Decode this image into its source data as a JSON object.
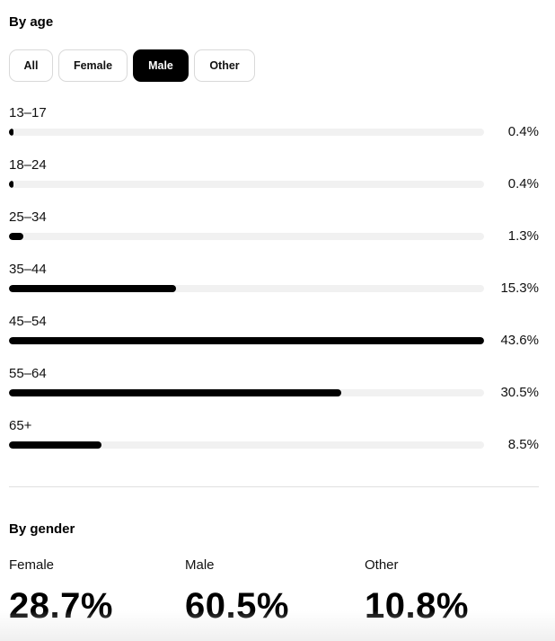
{
  "by_age": {
    "title": "By age",
    "filters": [
      {
        "label": "All",
        "active": false
      },
      {
        "label": "Female",
        "active": false
      },
      {
        "label": "Male",
        "active": true
      },
      {
        "label": "Other",
        "active": false
      }
    ],
    "rows": [
      {
        "label": "13–17",
        "value": "0.4%",
        "fill": 0.4
      },
      {
        "label": "18–24",
        "value": "0.4%",
        "fill": 0.4
      },
      {
        "label": "25–34",
        "value": "1.3%",
        "fill": 1.3
      },
      {
        "label": "35–44",
        "value": "15.3%",
        "fill": 15.3
      },
      {
        "label": "45–54",
        "value": "43.6%",
        "fill": 43.6
      },
      {
        "label": "55–64",
        "value": "30.5%",
        "fill": 30.5
      },
      {
        "label": "65+",
        "value": "8.5%",
        "fill": 8.5
      }
    ]
  },
  "by_gender": {
    "title": "By gender",
    "items": [
      {
        "label": "Female",
        "value": "28.7%"
      },
      {
        "label": "Male",
        "value": "60.5%"
      },
      {
        "label": "Other",
        "value": "10.8%"
      }
    ]
  },
  "colors": {
    "bar_fill": "#000000",
    "bar_track": "#f1f1f1",
    "active_filter_bg": "#000000"
  }
}
